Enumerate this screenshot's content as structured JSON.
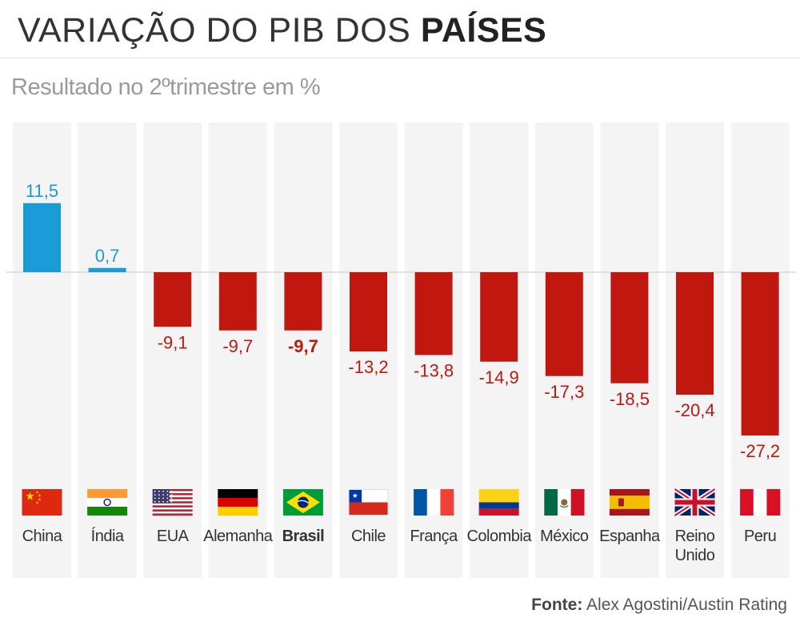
{
  "header": {
    "title_main": "VARIAÇÃO DO PIB DOS",
    "title_bold": "PAÍSES",
    "subtitle": "Resultado no 2ºtrimestre em %"
  },
  "source": {
    "label": "Fonte:",
    "text": "Alex Agostini/Austin Rating"
  },
  "colors": {
    "positive": "#1a9ad6",
    "negative": "#c0170f",
    "column_bg": "#f4f4f4"
  },
  "chart_data": {
    "type": "bar",
    "title": "VARIAÇÃO DO PIB DOS PAÍSES",
    "subtitle": "Resultado no 2ºtrimestre em %",
    "categories": [
      {
        "label": "China",
        "lines": [
          "China"
        ],
        "value_label": "11,5",
        "flag": "china-flag-icon",
        "bold": false
      },
      {
        "label": "Índia",
        "lines": [
          "Índia"
        ],
        "value_label": "0,7",
        "flag": "india-flag-icon",
        "bold": false
      },
      {
        "label": "EUA",
        "lines": [
          "EUA"
        ],
        "value_label": "-9,1",
        "flag": "usa-flag-icon",
        "bold": false
      },
      {
        "label": "Alemanha",
        "lines": [
          "Alemanha"
        ],
        "value_label": "-9,7",
        "flag": "germany-flag-icon",
        "bold": false
      },
      {
        "label": "Brasil",
        "lines": [
          "Brasil"
        ],
        "value_label": "-9,7",
        "flag": "brazil-flag-icon",
        "bold": true
      },
      {
        "label": "Chile",
        "lines": [
          "Chile"
        ],
        "value_label": "-13,2",
        "flag": "chile-flag-icon",
        "bold": false
      },
      {
        "label": "França",
        "lines": [
          "França"
        ],
        "value_label": "-13,8",
        "flag": "france-flag-icon",
        "bold": false
      },
      {
        "label": "Colombia",
        "lines": [
          "Colombia"
        ],
        "value_label": "-14,9",
        "flag": "colombia-flag-icon",
        "bold": false
      },
      {
        "label": "México",
        "lines": [
          "México"
        ],
        "value_label": "-17,3",
        "flag": "mexico-flag-icon",
        "bold": false
      },
      {
        "label": "Espanha",
        "lines": [
          "Espanha"
        ],
        "value_label": "-18,5",
        "flag": "spain-flag-icon",
        "bold": false
      },
      {
        "label": "Reino Unido",
        "lines": [
          "Reino",
          "Unido"
        ],
        "value_label": "-20,4",
        "flag": "uk-flag-icon",
        "bold": false
      },
      {
        "label": "Peru",
        "lines": [
          "Peru"
        ],
        "value_label": "-27,2",
        "flag": "peru-flag-icon",
        "bold": false
      }
    ],
    "values": [
      11.5,
      0.7,
      -9.1,
      -9.7,
      -9.7,
      -13.2,
      -13.8,
      -14.9,
      -17.3,
      -18.5,
      -20.4,
      -27.2
    ],
    "ylim": [
      -28,
      25
    ],
    "grid": false,
    "legend": "none"
  }
}
